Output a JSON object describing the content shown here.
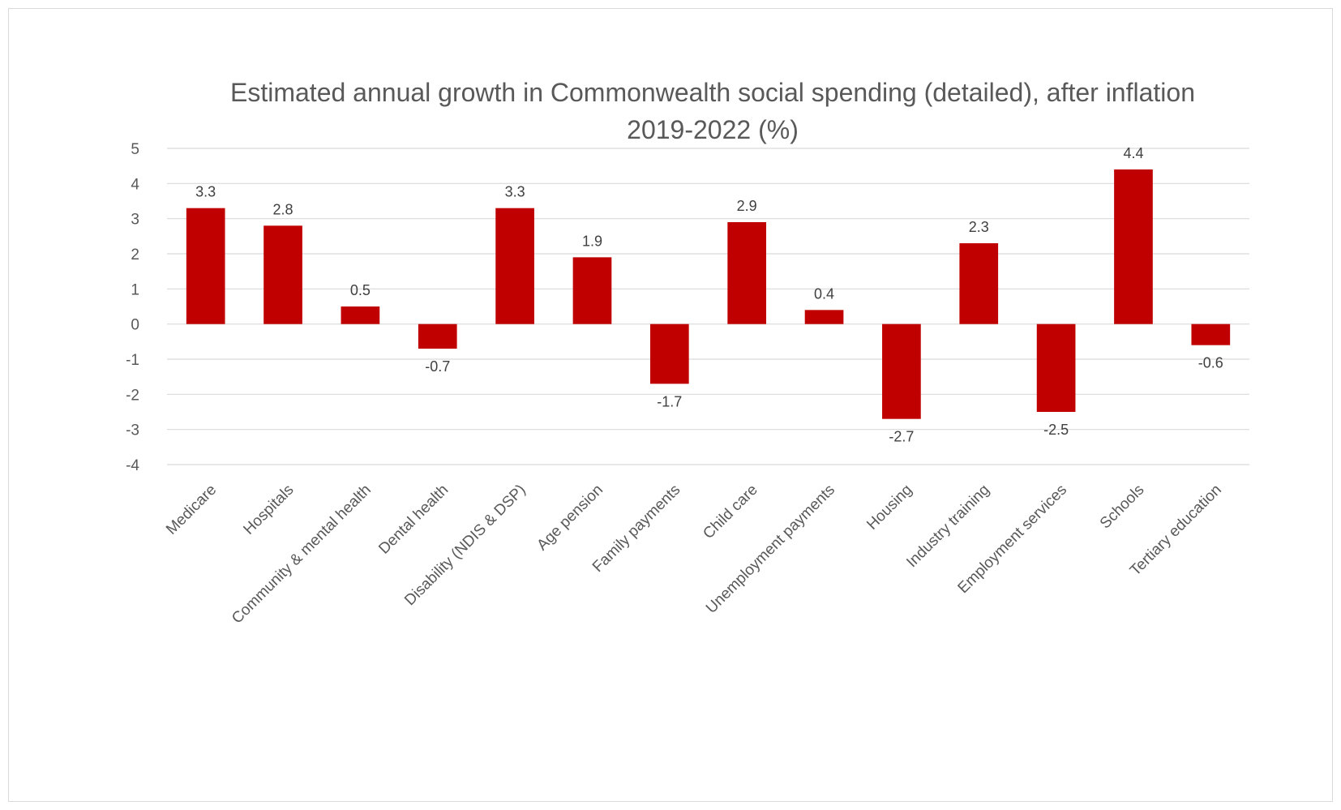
{
  "chart_data": {
    "type": "bar",
    "title": "Estimated annual growth in Commonwealth social spending (detailed), after inflation",
    "subtitle": "2019-2022 (%)",
    "xlabel": "",
    "ylabel": "",
    "categories": [
      "Medicare",
      "Hospitals",
      "Community & mental health",
      "Dental health",
      "Disability (NDIS & DSP)",
      "Age pension",
      "Family payments",
      "Child care",
      "Unemployment payments",
      "Housing",
      "Industry training",
      "Employment services",
      "Schools",
      "Tertiary education"
    ],
    "values": [
      3.3,
      2.8,
      0.5,
      -0.7,
      3.3,
      1.9,
      -1.7,
      2.9,
      0.4,
      -2.7,
      2.3,
      -2.5,
      4.4,
      -0.6
    ],
    "value_labels": [
      "3.3",
      "2.8",
      "0.5",
      "-0.7",
      "3.3",
      "1.9",
      "-1.7",
      "2.9",
      "0.4",
      "-2.7",
      "2.3",
      "-2.5",
      "4.4",
      "-0.6"
    ],
    "ylim": [
      -4,
      5
    ],
    "y_ticks": [
      5,
      4,
      3,
      2,
      1,
      0,
      -1,
      -2,
      -3,
      -4
    ],
    "y_tick_labels": [
      "5",
      "4",
      "3",
      "2",
      "1",
      "0",
      "-1",
      "-2",
      "-3",
      "-4"
    ],
    "grid": true,
    "legend": "none",
    "bar_color": "#c00000",
    "grid_color": "#d9d9d9",
    "text_color": "#595959"
  }
}
